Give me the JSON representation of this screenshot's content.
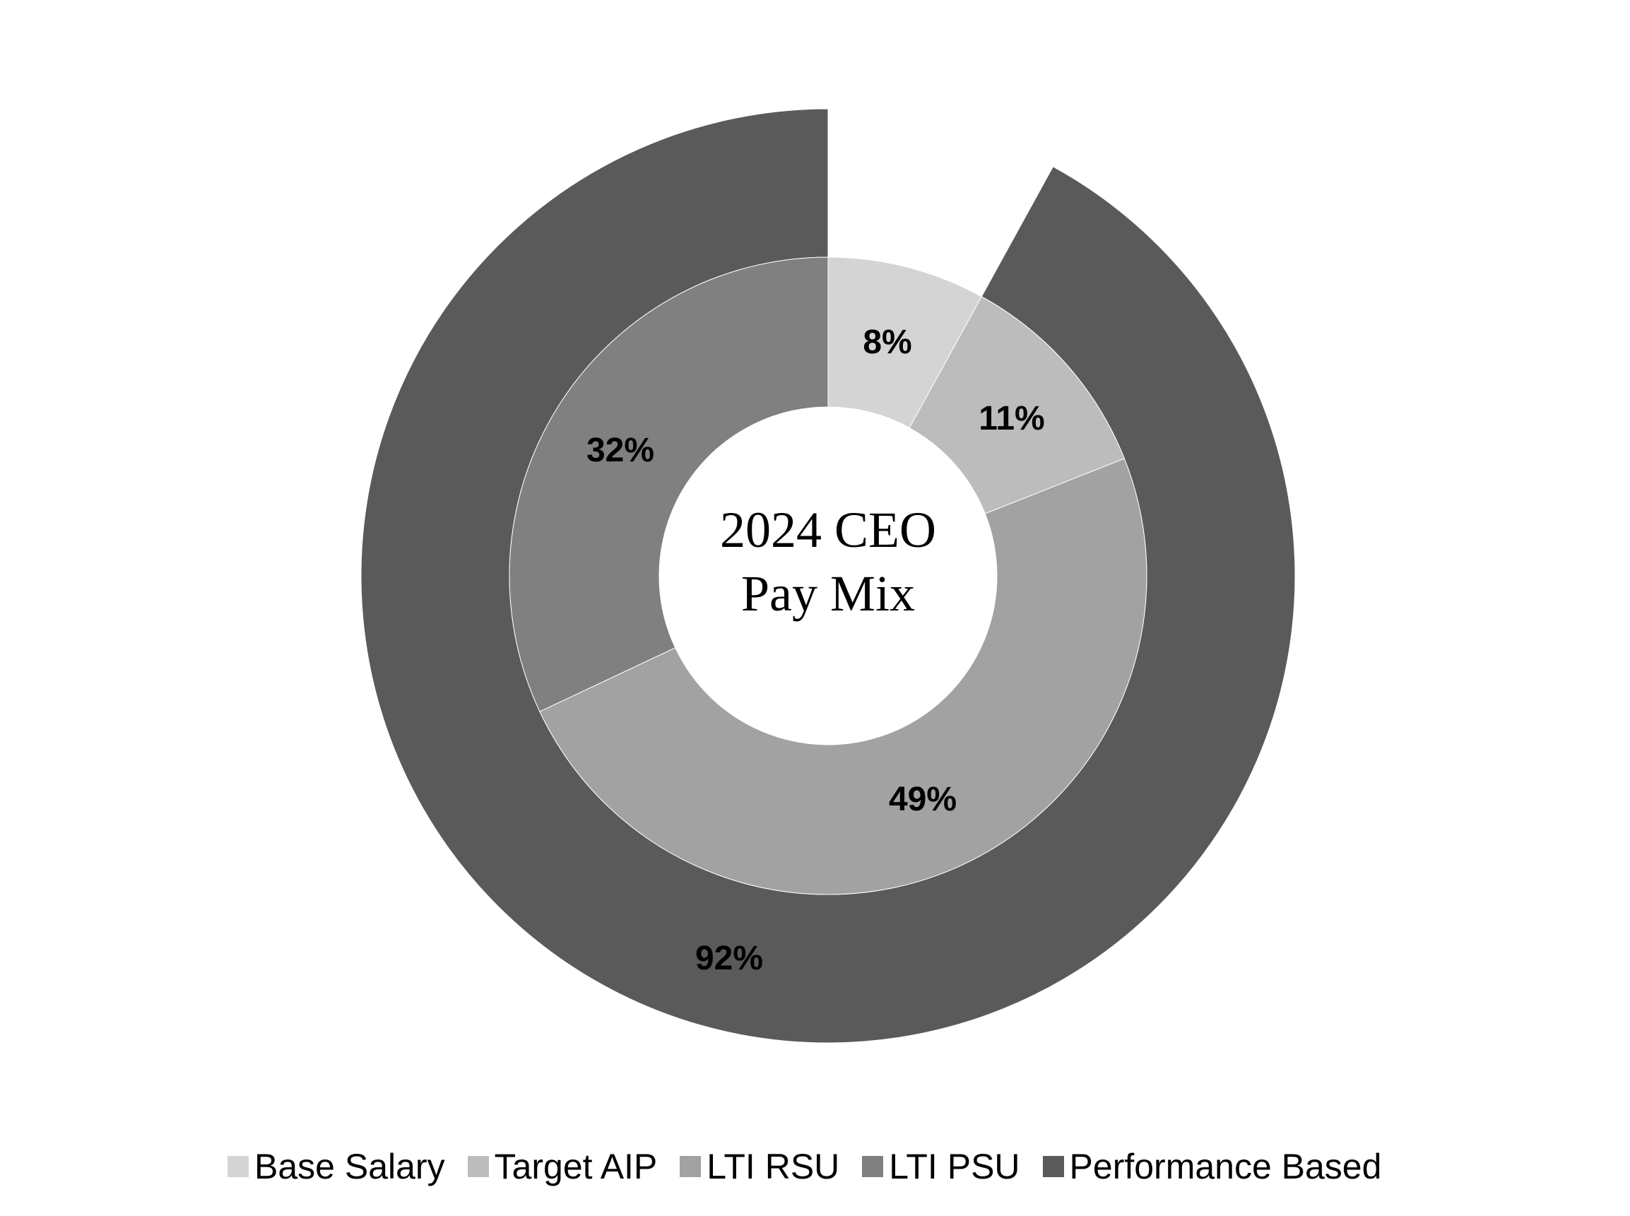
{
  "chart_data": {
    "type": "donut",
    "title": "2024 CEO Pay Mix",
    "center_label_lines": [
      "2024 CEO",
      "Pay Mix"
    ],
    "rings": [
      {
        "name": "inner",
        "slices": [
          {
            "label": "Base Salary",
            "value": 8,
            "display": "8%",
            "color": "#d4d4d4"
          },
          {
            "label": "Target AIP",
            "value": 11,
            "display": "11%",
            "color": "#bcbcbc"
          },
          {
            "label": "LTI RSU",
            "value": 49,
            "display": "49%",
            "color": "#a2a2a2"
          },
          {
            "label": "LTI PSU",
            "value": 32,
            "display": "32%",
            "color": "#808080"
          }
        ]
      },
      {
        "name": "outer",
        "slices": [
          {
            "label": "Base Salary (gap)",
            "value": 8,
            "display": "",
            "color": "transparent"
          },
          {
            "label": "Performance Based",
            "value": 92,
            "display": "92%",
            "color": "#5a5a5a"
          }
        ]
      }
    ],
    "legend": [
      {
        "label": "Base Salary",
        "color": "#d4d4d4"
      },
      {
        "label": "Target AIP",
        "color": "#bcbcbc"
      },
      {
        "label": "LTI RSU",
        "color": "#a2a2a2"
      },
      {
        "label": "LTI PSU",
        "color": "#808080"
      },
      {
        "label": "Performance Based",
        "color": "#5a5a5a"
      }
    ],
    "legend_position": "bottom"
  },
  "labels": {
    "base_salary_pct": "8%",
    "target_aip_pct": "11%",
    "lti_rsu_pct": "49%",
    "lti_psu_pct": "32%",
    "performance_based_pct": "92%"
  },
  "center": {
    "line1": "2024 CEO",
    "line2": "Pay Mix"
  },
  "legend": {
    "base_salary": "Base Salary",
    "target_aip": "Target AIP",
    "lti_rsu": "LTI RSU",
    "lti_psu": "LTI PSU",
    "performance_based": "Performance Based"
  }
}
